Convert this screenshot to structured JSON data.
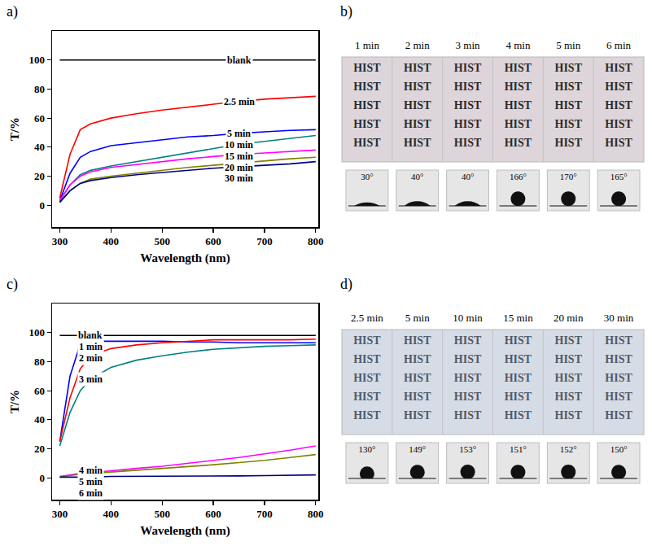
{
  "chart_data": [
    {
      "type": "line",
      "label": "a)",
      "xlabel": "Wavelength (nm)",
      "ylabel": "T/%",
      "x": [
        300,
        320,
        340,
        360,
        400,
        450,
        500,
        550,
        600,
        650,
        700,
        750,
        800
      ],
      "xlim": [
        285,
        805
      ],
      "xticks": [
        300,
        400,
        500,
        600,
        700,
        800
      ],
      "ylim": [
        -15,
        120
      ],
      "yticks": [
        0,
        20,
        40,
        60,
        80,
        100
      ],
      "grid": false,
      "series": [
        {
          "name": "blank",
          "color": "#000000",
          "values": [
            100,
            100,
            100,
            100,
            100,
            100,
            100,
            100,
            100,
            100,
            100,
            100,
            100
          ]
        },
        {
          "name": "2.5 min",
          "color": "#ff0000",
          "values": [
            5,
            35,
            52,
            56,
            60,
            63,
            65.5,
            67.5,
            69.5,
            71.5,
            73,
            74,
            75
          ]
        },
        {
          "name": "5 min",
          "color": "#0000ff",
          "values": [
            3,
            22,
            33,
            37,
            41,
            43,
            45,
            47,
            48,
            49.5,
            50.5,
            51.5,
            52
          ]
        },
        {
          "name": "10 min",
          "color": "#008080",
          "values": [
            3,
            14,
            21,
            24,
            27,
            30,
            33,
            36,
            39,
            42,
            44,
            46,
            48
          ]
        },
        {
          "name": "15 min",
          "color": "#ff00ff",
          "values": [
            3,
            14,
            20,
            23,
            26,
            28,
            30,
            32,
            33.5,
            35,
            36,
            37,
            38
          ]
        },
        {
          "name": "20 min",
          "color": "#808000",
          "values": [
            2,
            10,
            15,
            18,
            20,
            22,
            24,
            26,
            27.5,
            29,
            30.5,
            32,
            33
          ]
        },
        {
          "name": "30 min",
          "color": "#000080",
          "values": [
            2,
            10,
            15,
            17,
            19,
            21,
            22.5,
            24,
            25.5,
            26.5,
            27.5,
            28.5,
            30
          ]
        }
      ]
    },
    {
      "type": "line",
      "label": "c)",
      "xlabel": "Wavelength (nm)",
      "ylabel": "T/%",
      "x": [
        300,
        320,
        340,
        360,
        400,
        450,
        500,
        550,
        600,
        650,
        700,
        750,
        800
      ],
      "xlim": [
        285,
        805
      ],
      "xticks": [
        300,
        400,
        500,
        600,
        700,
        800
      ],
      "ylim": [
        -15,
        120
      ],
      "yticks": [
        0,
        20,
        40,
        60,
        80,
        100
      ],
      "grid": false,
      "series": [
        {
          "name": "blank",
          "color": "#000000",
          "values": [
            98,
            98,
            98,
            98,
            98,
            98,
            98,
            98,
            98,
            98,
            98,
            98,
            98
          ]
        },
        {
          "name": "1 min",
          "color": "#0000ff",
          "values": [
            25,
            70,
            92,
            94,
            94,
            94,
            94,
            93.5,
            93.5,
            93,
            93,
            93,
            93
          ]
        },
        {
          "name": "2 min",
          "color": "#ff0000",
          "values": [
            25,
            55,
            75,
            84,
            89,
            91.5,
            93,
            94,
            95,
            95,
            95,
            95,
            95.5
          ]
        },
        {
          "name": "3 min",
          "color": "#008080",
          "values": [
            22,
            45,
            60,
            68,
            76,
            81,
            84,
            86.5,
            88.5,
            89.5,
            90.5,
            91,
            91.5
          ]
        },
        {
          "name": "4 min",
          "color": "#ff00ff",
          "values": [
            1,
            2,
            3,
            3.5,
            5,
            6.5,
            8,
            10,
            12,
            14,
            16.5,
            19,
            22
          ]
        },
        {
          "name": "5 min",
          "color": "#808000",
          "values": [
            0.5,
            1.5,
            2.5,
            3,
            4,
            5,
            6.5,
            7.5,
            9,
            10.5,
            12,
            14,
            16
          ]
        },
        {
          "name": "6 min",
          "color": "#000080",
          "values": [
            0.5,
            0.5,
            0.5,
            0.5,
            1,
            1,
            1,
            1,
            1.2,
            1.3,
            1.5,
            1.7,
            2
          ]
        }
      ]
    }
  ],
  "photos": [
    {
      "label": "b)",
      "times": [
        "1 min",
        "2 min",
        "3 min",
        "4 min",
        "5 min",
        "6 min"
      ],
      "text": "HIST",
      "rows": 5,
      "contact_angles": [
        {
          "value": 30,
          "label": "30°"
        },
        {
          "value": 40,
          "label": "40°"
        },
        {
          "value": 40,
          "label": "40°"
        },
        {
          "value": 166,
          "label": "166°"
        },
        {
          "value": 170,
          "label": "170°"
        },
        {
          "value": 165,
          "label": "165°"
        }
      ]
    },
    {
      "label": "d)",
      "times": [
        "2.5 min",
        "5 min",
        "10 min",
        "15 min",
        "20 min",
        "30 min"
      ],
      "text": "HIST",
      "rows": 5,
      "contact_angles": [
        {
          "value": 130,
          "label": "130°"
        },
        {
          "value": 149,
          "label": "149°"
        },
        {
          "value": 153,
          "label": "153°"
        },
        {
          "value": 151,
          "label": "151°"
        },
        {
          "value": 152,
          "label": "152°"
        },
        {
          "value": 150,
          "label": "150°"
        }
      ]
    }
  ]
}
